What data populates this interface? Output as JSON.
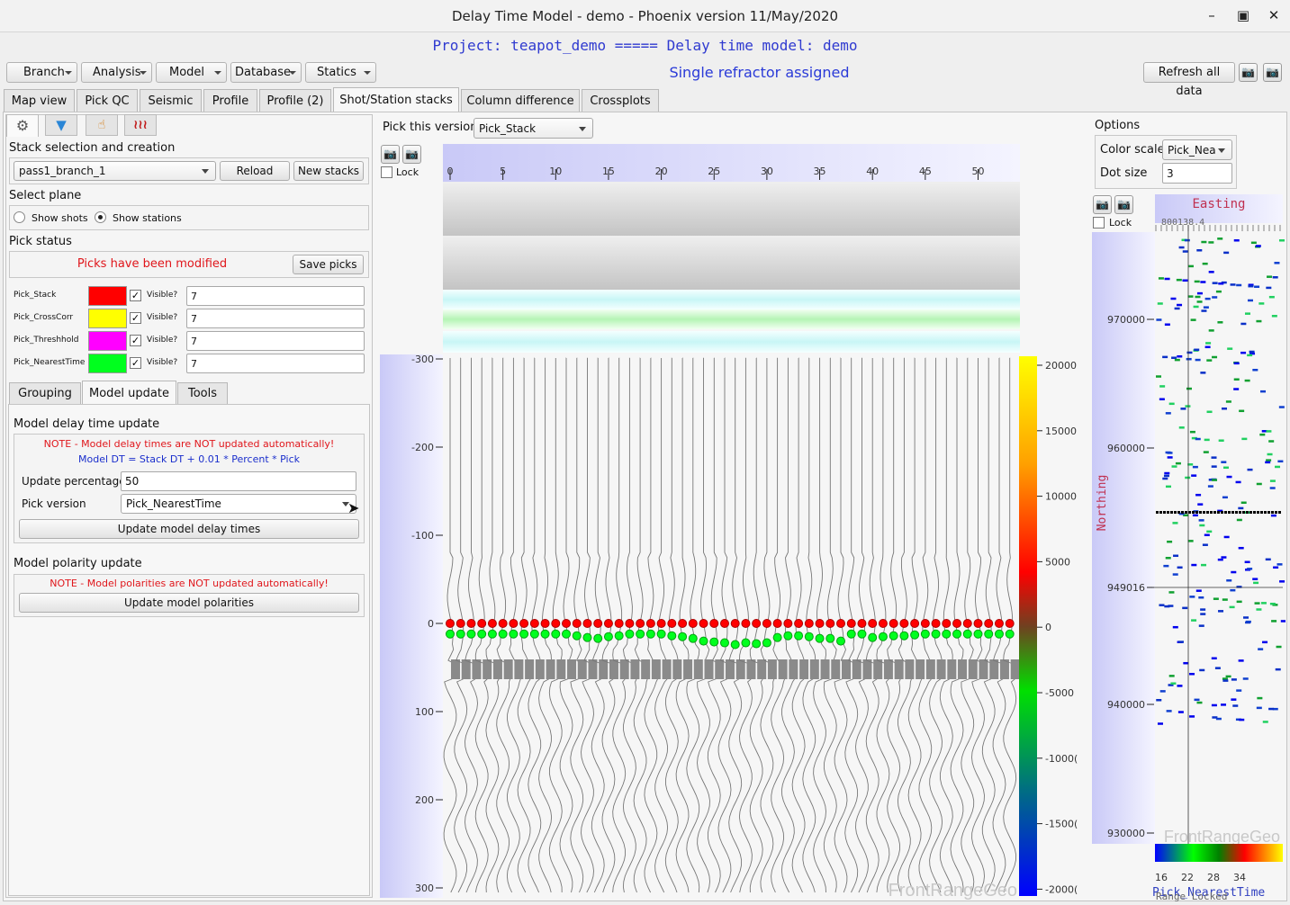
{
  "window": {
    "title": "Delay Time Model - demo - Phoenix version 11/May/2020",
    "min_icon": "minimize-icon",
    "max_icon": "maximize-icon",
    "close_icon": "close-icon"
  },
  "project_line": "Project: teapot_demo ===== Delay time model: demo",
  "menus": [
    "Branch",
    "Analysis",
    "Model",
    "Database",
    "Statics"
  ],
  "status": "Single refractor assigned",
  "refresh_label": "Refresh all data",
  "tabs": [
    "Map view",
    "Pick QC",
    "Seismic",
    "Profile",
    "Profile (2)",
    "Shot/Station stacks",
    "Column difference",
    "Crossplots"
  ],
  "left": {
    "icon_tabs": [
      "gear-icon",
      "filter-icon",
      "hand-pointer-icon",
      "wiggle-traces-icon"
    ],
    "stack_section": "Stack selection and creation",
    "stack_value": "pass1_branch_1",
    "reload": "Reload",
    "new_stacks": "New stacks",
    "plane_section": "Select plane",
    "show_shots": "Show shots",
    "show_stations": "Show stations",
    "pick_status": "Pick status",
    "modified": "Picks have been modified",
    "save_picks": "Save picks",
    "picks": [
      {
        "name": "Pick_Stack",
        "color": "#ff0000",
        "visible": "Visible?",
        "value": "7"
      },
      {
        "name": "Pick_CrossCorr",
        "color": "#ffff00",
        "visible": "Visible?",
        "value": "7"
      },
      {
        "name": "Pick_Threshhold",
        "color": "#ff00ff",
        "visible": "Visible?",
        "value": "7"
      },
      {
        "name": "Pick_NearestTime",
        "color": "#00ff1e",
        "visible": "Visible?",
        "value": "7"
      }
    ],
    "subtabs": [
      "Grouping",
      "Model update",
      "Tools"
    ],
    "model_delay_section": "Model delay time update",
    "note1": "NOTE - Model delay times are NOT updated automatically!",
    "formula": "Model DT = Stack DT + 0.01 * Percent * Pick",
    "update_pct_label": "Update percentage",
    "update_pct": "50",
    "pick_version_label": "Pick version",
    "pick_version": "Pick_NearestTime",
    "update_delay_btn": "Update model delay times",
    "polarity_section": "Model polarity update",
    "note2": "NOTE - Model polarities are NOT updated automatically!",
    "update_pol_btn": "Update model polarities"
  },
  "center": {
    "pick_this_label": "Pick this version",
    "pick_this_value": "Pick_Stack",
    "lock": "Lock",
    "x_ticks": [
      "0",
      "5",
      "10",
      "15",
      "20",
      "25",
      "30",
      "35",
      "40",
      "45",
      "50"
    ],
    "y_ticks": [
      "-300",
      "-200",
      "-100",
      "0",
      "100",
      "200",
      "300"
    ],
    "color_ticks": [
      "20000",
      "15000",
      "10000",
      "5000",
      "0",
      "-5000",
      "-1000(",
      "-1500(",
      "-2000("
    ],
    "watermark": "FrontRangeGeo"
  },
  "right": {
    "options": "Options",
    "color_scale_label": "Color scale",
    "color_scale_value": "Pick_Nea",
    "dot_size_label": "Dot size",
    "dot_size": "3",
    "lock": "Lock",
    "easting": "Easting",
    "easting_val": "800138.4",
    "northing": "Northing",
    "y_ticks": [
      "970000",
      "960000",
      "949016",
      "940000",
      "930000"
    ],
    "cb_ticks": [
      "16",
      "22",
      "28",
      "34"
    ],
    "watermark": "FrontRangeGeo",
    "bottom_label1": "Pick_NearestTime",
    "bottom_label2": "Range_Locked"
  },
  "chart_data": {
    "type": "scatter",
    "title": "",
    "xlabel": "",
    "ylabel": "",
    "x_range": [
      -1,
      55
    ],
    "y_range": [
      -300,
      300
    ],
    "series": [
      {
        "name": "Pick_Stack",
        "color": "#ff0000",
        "x_start": 0,
        "x_end": 53,
        "y": 0
      },
      {
        "name": "Pick_NearestTime",
        "color": "#00ff1e",
        "x_start": 0,
        "x_end": 53,
        "y_approx": [
          12,
          12,
          12,
          12,
          12,
          12,
          12,
          12,
          12,
          12,
          12,
          12,
          14,
          16,
          17,
          15,
          14,
          12,
          12,
          12,
          12,
          14,
          15,
          17,
          20,
          21,
          22,
          24,
          22,
          23,
          22,
          16,
          14,
          14,
          15,
          17,
          17,
          20,
          12,
          12,
          16,
          15,
          14,
          14,
          13,
          12,
          12,
          12,
          12,
          12,
          12,
          12,
          12,
          12
        ]
      }
    ]
  }
}
